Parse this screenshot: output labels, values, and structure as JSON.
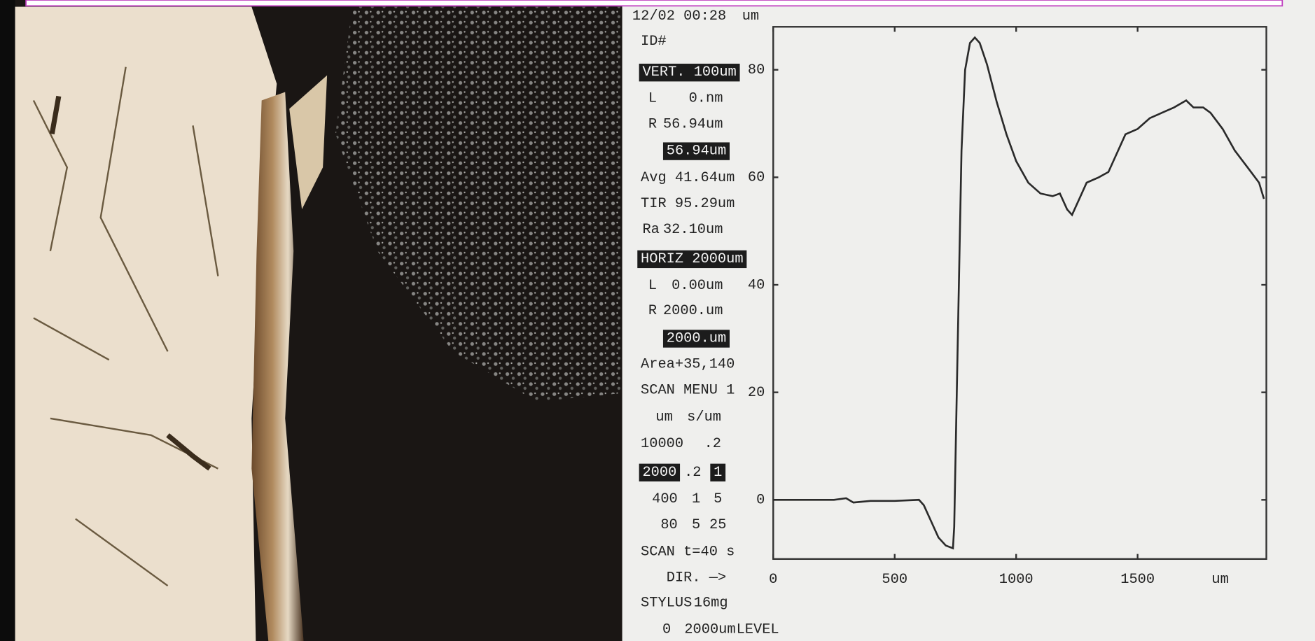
{
  "chart_data": {
    "type": "line",
    "y_label": "um",
    "x_label": "um",
    "x": [
      0,
      250,
      300,
      330,
      400,
      500,
      600,
      620,
      650,
      680,
      710,
      740,
      745,
      760,
      775,
      790,
      810,
      830,
      850,
      880,
      920,
      960,
      1000,
      1050,
      1100,
      1150,
      1180,
      1210,
      1230,
      1260,
      1290,
      1340,
      1380,
      1420,
      1450,
      1500,
      1550,
      1600,
      1650,
      1700,
      1730,
      1770,
      1800,
      1850,
      1900,
      1950,
      2000,
      2020
    ],
    "values": [
      0,
      0,
      0.3,
      -0.5,
      -0.2,
      -0.2,
      0,
      -1,
      -4,
      -7,
      -8.5,
      -9,
      -5,
      30,
      65,
      80,
      85,
      86,
      85,
      81,
      74,
      68,
      63,
      59,
      57,
      56.5,
      57,
      54,
      53,
      56,
      59,
      60,
      61,
      65,
      68,
      69,
      71,
      72,
      73,
      74.3,
      73,
      73,
      72,
      69,
      65,
      62,
      59,
      56
    ],
    "color": "#2a2a2a",
    "xlim": [
      0,
      2030
    ],
    "xticks": [
      0,
      500,
      1000,
      1500
    ],
    "ylim": [
      -11,
      88
    ],
    "yticks": [
      0,
      20,
      40,
      60,
      80
    ]
  },
  "panel": {
    "rows": [
      [
        "12/02 00:28"
      ],
      [
        "ID#"
      ],
      [
        "VERT. 100um"
      ],
      [
        "L",
        "0.nm"
      ],
      [
        "R",
        "56.94um"
      ],
      [
        "56.94um"
      ],
      [
        "Avg 41.64um"
      ],
      [
        "TIR 95.29um"
      ],
      [
        "Ra",
        "32.10um"
      ],
      [
        "HORIZ 2000um"
      ],
      [
        "L",
        "0.00um"
      ],
      [
        "R",
        "2000.um"
      ],
      [
        "2000.um"
      ],
      [
        "Area+35,140"
      ],
      [
        "SCAN MENU 1"
      ],
      [
        "um",
        "s/um"
      ],
      [
        "10000",
        ".2"
      ],
      [
        "2000",
        ".2",
        "1"
      ],
      [
        "400",
        "1",
        "5"
      ],
      [
        "80",
        "5",
        "25"
      ],
      [
        "SCAN t=40 s"
      ],
      [
        "DIR. —>"
      ],
      [
        "STYLUS",
        "16mg"
      ],
      [
        "0",
        "2000um",
        "LEVEL"
      ]
    ]
  }
}
